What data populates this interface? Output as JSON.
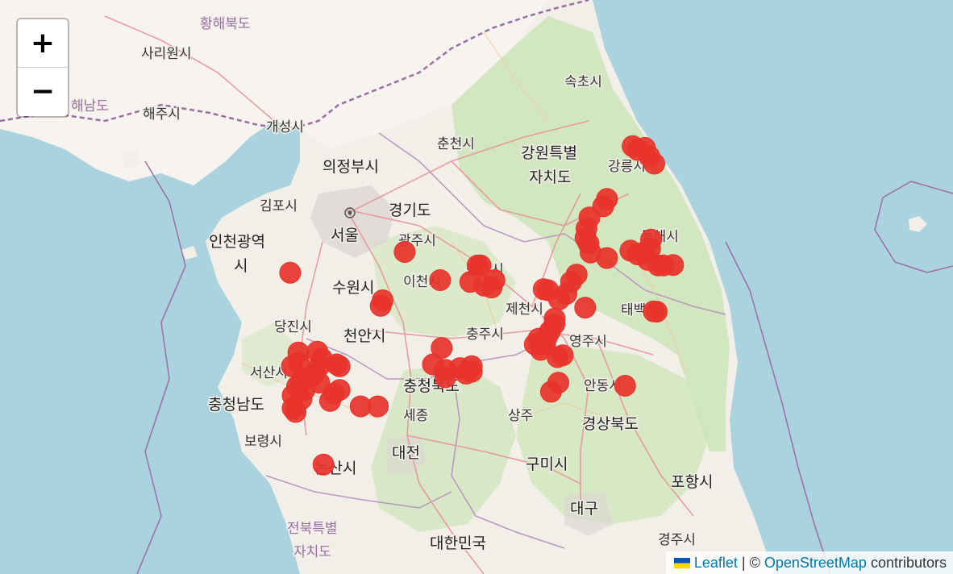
{
  "zoom": {
    "in_label": "+",
    "out_label": "−"
  },
  "attribution": {
    "leaflet_label": "Leaflet",
    "separator": "|",
    "copyright": "©",
    "osm_label": "OpenStreetMap",
    "contributors": "contributors",
    "flag_icon": "ukraine-flag-icon"
  },
  "colors": {
    "marker": "#e8332a",
    "water": "#aad3df",
    "land": "#f2efe9",
    "forest": "#cde5b8",
    "north_land": "#f7f4ef",
    "border": "#9b6ea3"
  },
  "labels": {
    "hwanghae_north": "황해북도",
    "sariwon": "사리원시",
    "hwanghae_south": "해남도",
    "haeju": "해주시",
    "kaesong": "개성시",
    "sokcho": "속초시",
    "chuncheon": "춘천시",
    "gangwon_1": "강원특별",
    "gangwon_2": "자치도",
    "gangneung": "강릉시",
    "uijeongbu": "의정부시",
    "gimpo": "김포시",
    "gyeonggi": "경기도",
    "seoul": "서울",
    "incheon_1": "인천광역",
    "incheon_2": "시",
    "gwangju_gg": "광주시",
    "wonju": "원주시",
    "donghae": "동해시",
    "suwon": "수원시",
    "icheon": "이천시",
    "taebaek": "태백시",
    "dangjin": "당진시",
    "cheonan": "천안시",
    "jecheon": "제천시",
    "chungju": "충주시",
    "yeongju": "영주시",
    "seosan": "서산시",
    "chungbuk": "충청북도",
    "andong": "안동시",
    "chungnam": "충청남도",
    "sejong": "세종",
    "sangju": "상주",
    "gyeongbuk": "경상북도",
    "boryeong": "보령시",
    "nonsan": "논산시",
    "daejeon": "대전",
    "gumi": "구미시",
    "pohang": "포항시",
    "daegu": "대구",
    "jeonbuk_1": "전북특별",
    "jeonbuk_2": "자치도",
    "korea": "대한민국",
    "gyeongju": "경주시"
  },
  "markers": [
    {
      "lat": 37.755,
      "lon": 128.876
    },
    {
      "lat": 37.746,
      "lon": 128.96
    },
    {
      "lat": 37.735,
      "lon": 128.91
    },
    {
      "lat": 37.7,
      "lon": 128.99
    },
    {
      "lat": 37.661,
      "lon": 129.024
    },
    {
      "lat": 37.47,
      "lon": 128.702
    },
    {
      "lat": 37.431,
      "lon": 128.676
    },
    {
      "lat": 37.37,
      "lon": 128.582
    },
    {
      "lat": 37.31,
      "lon": 128.562
    },
    {
      "lat": 37.26,
      "lon": 128.555
    },
    {
      "lat": 37.23,
      "lon": 128.575
    },
    {
      "lat": 37.18,
      "lon": 128.59
    },
    {
      "lat": 37.15,
      "lon": 128.702
    },
    {
      "lat": 37.19,
      "lon": 128.861
    },
    {
      "lat": 37.17,
      "lon": 128.91
    },
    {
      "lat": 37.18,
      "lon": 128.95
    },
    {
      "lat": 37.14,
      "lon": 128.98
    },
    {
      "lat": 37.2,
      "lon": 128.995
    },
    {
      "lat": 37.25,
      "lon": 129.002
    },
    {
      "lat": 37.11,
      "lon": 129.05
    },
    {
      "lat": 37.11,
      "lon": 129.086
    },
    {
      "lat": 37.112,
      "lon": 129.152
    },
    {
      "lat": 36.858,
      "lon": 129.04
    },
    {
      "lat": 36.86,
      "lon": 129.02
    },
    {
      "lat": 37.183,
      "lon": 127.323
    },
    {
      "lat": 37.11,
      "lon": 127.82
    },
    {
      "lat": 37.11,
      "lon": 127.84
    },
    {
      "lat": 37.02,
      "lon": 127.77
    },
    {
      "lat": 37.0,
      "lon": 127.865
    },
    {
      "lat": 36.99,
      "lon": 127.915
    },
    {
      "lat": 37.03,
      "lon": 127.935
    },
    {
      "lat": 36.98,
      "lon": 128.27
    },
    {
      "lat": 37.06,
      "lon": 128.495
    },
    {
      "lat": 37.02,
      "lon": 128.457
    },
    {
      "lat": 36.955,
      "lon": 128.425
    },
    {
      "lat": 36.925,
      "lon": 128.375
    },
    {
      "lat": 36.975,
      "lon": 128.3
    },
    {
      "lat": 36.75,
      "lon": 128.312
    },
    {
      "lat": 36.79,
      "lon": 128.343
    },
    {
      "lat": 36.82,
      "lon": 128.345
    },
    {
      "lat": 36.72,
      "lon": 128.292
    },
    {
      "lat": 36.68,
      "lon": 128.28
    },
    {
      "lat": 36.71,
      "lon": 128.235
    },
    {
      "lat": 36.68,
      "lon": 128.21
    },
    {
      "lat": 36.65,
      "lon": 128.25
    },
    {
      "lat": 36.61,
      "lon": 128.364
    },
    {
      "lat": 36.62,
      "lon": 128.4
    },
    {
      "lat": 36.47,
      "lon": 128.37
    },
    {
      "lat": 36.42,
      "lon": 128.32
    },
    {
      "lat": 36.88,
      "lon": 128.553
    },
    {
      "lat": 36.453,
      "lon": 128.825
    },
    {
      "lat": 37.07,
      "lon": 126.543
    },
    {
      "lat": 36.92,
      "lon": 127.173
    },
    {
      "lat": 36.89,
      "lon": 127.16
    },
    {
      "lat": 37.03,
      "lon": 127.565
    },
    {
      "lat": 36.66,
      "lon": 127.575
    },
    {
      "lat": 36.57,
      "lon": 127.516
    },
    {
      "lat": 36.54,
      "lon": 127.6
    },
    {
      "lat": 36.55,
      "lon": 127.7
    },
    {
      "lat": 36.52,
      "lon": 127.742
    },
    {
      "lat": 36.5,
      "lon": 127.6
    },
    {
      "lat": 36.53,
      "lon": 127.78
    },
    {
      "lat": 36.56,
      "lon": 127.78
    },
    {
      "lat": 36.635,
      "lon": 126.599
    },
    {
      "lat": 36.58,
      "lon": 126.6
    },
    {
      "lat": 36.56,
      "lon": 126.555
    },
    {
      "lat": 36.64,
      "lon": 126.728
    },
    {
      "lat": 36.6,
      "lon": 126.76
    },
    {
      "lat": 36.56,
      "lon": 126.74
    },
    {
      "lat": 36.52,
      "lon": 126.71
    },
    {
      "lat": 36.48,
      "lon": 126.62
    },
    {
      "lat": 36.45,
      "lon": 126.59
    },
    {
      "lat": 36.43,
      "lon": 126.64
    },
    {
      "lat": 36.4,
      "lon": 126.56
    },
    {
      "lat": 36.38,
      "lon": 126.62
    },
    {
      "lat": 36.33,
      "lon": 126.56
    },
    {
      "lat": 36.31,
      "lon": 126.58
    },
    {
      "lat": 36.5,
      "lon": 126.68
    },
    {
      "lat": 36.47,
      "lon": 126.74
    },
    {
      "lat": 36.56,
      "lon": 126.88
    },
    {
      "lat": 36.57,
      "lon": 126.86
    },
    {
      "lat": 36.43,
      "lon": 126.88
    },
    {
      "lat": 36.41,
      "lon": 126.84
    },
    {
      "lat": 36.37,
      "lon": 126.815
    },
    {
      "lat": 36.34,
      "lon": 127.023
    },
    {
      "lat": 36.34,
      "lon": 127.14
    },
    {
      "lat": 36.02,
      "lon": 126.77
    }
  ]
}
